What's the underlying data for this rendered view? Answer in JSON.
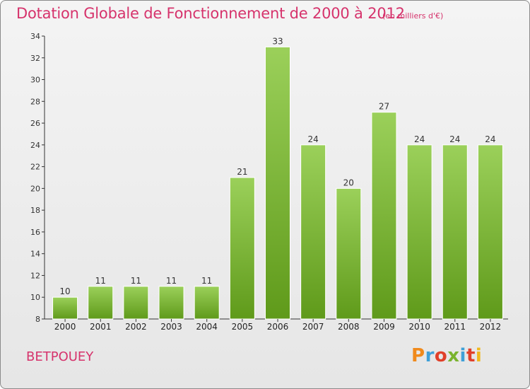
{
  "header": {
    "title": "Dotation Globale de Fonctionnement de 2000 à 2012",
    "subtitle": "(en milliers d'€)"
  },
  "footer": {
    "commune": "BETPOUEY",
    "logo_text": "Proxiti"
  },
  "colors": {
    "title": "#d6336c",
    "bar_top": "#9bd05a",
    "bar_bottom": "#5f9a1a",
    "logo_letters": [
      "#f08a1c",
      "#3fa0d8",
      "#e0402a",
      "#7ab32e",
      "#3fa0d8",
      "#e0402a",
      "#f0b81c"
    ]
  },
  "chart_data": {
    "type": "bar",
    "title": "Dotation Globale de Fonctionnement de 2000 à 2012",
    "subtitle": "(en milliers d'€)",
    "xlabel": "",
    "ylabel": "",
    "categories": [
      "2000",
      "2001",
      "2002",
      "2003",
      "2004",
      "2005",
      "2006",
      "2007",
      "2008",
      "2009",
      "2010",
      "2011",
      "2012"
    ],
    "values": [
      10,
      11,
      11,
      11,
      11,
      21,
      33,
      24,
      20,
      27,
      24,
      24,
      24
    ],
    "ylim": [
      8,
      34
    ],
    "yticks": [
      8,
      10,
      12,
      14,
      16,
      18,
      20,
      22,
      24,
      26,
      28,
      30,
      32,
      34
    ],
    "grid": false,
    "data_labels": true
  }
}
